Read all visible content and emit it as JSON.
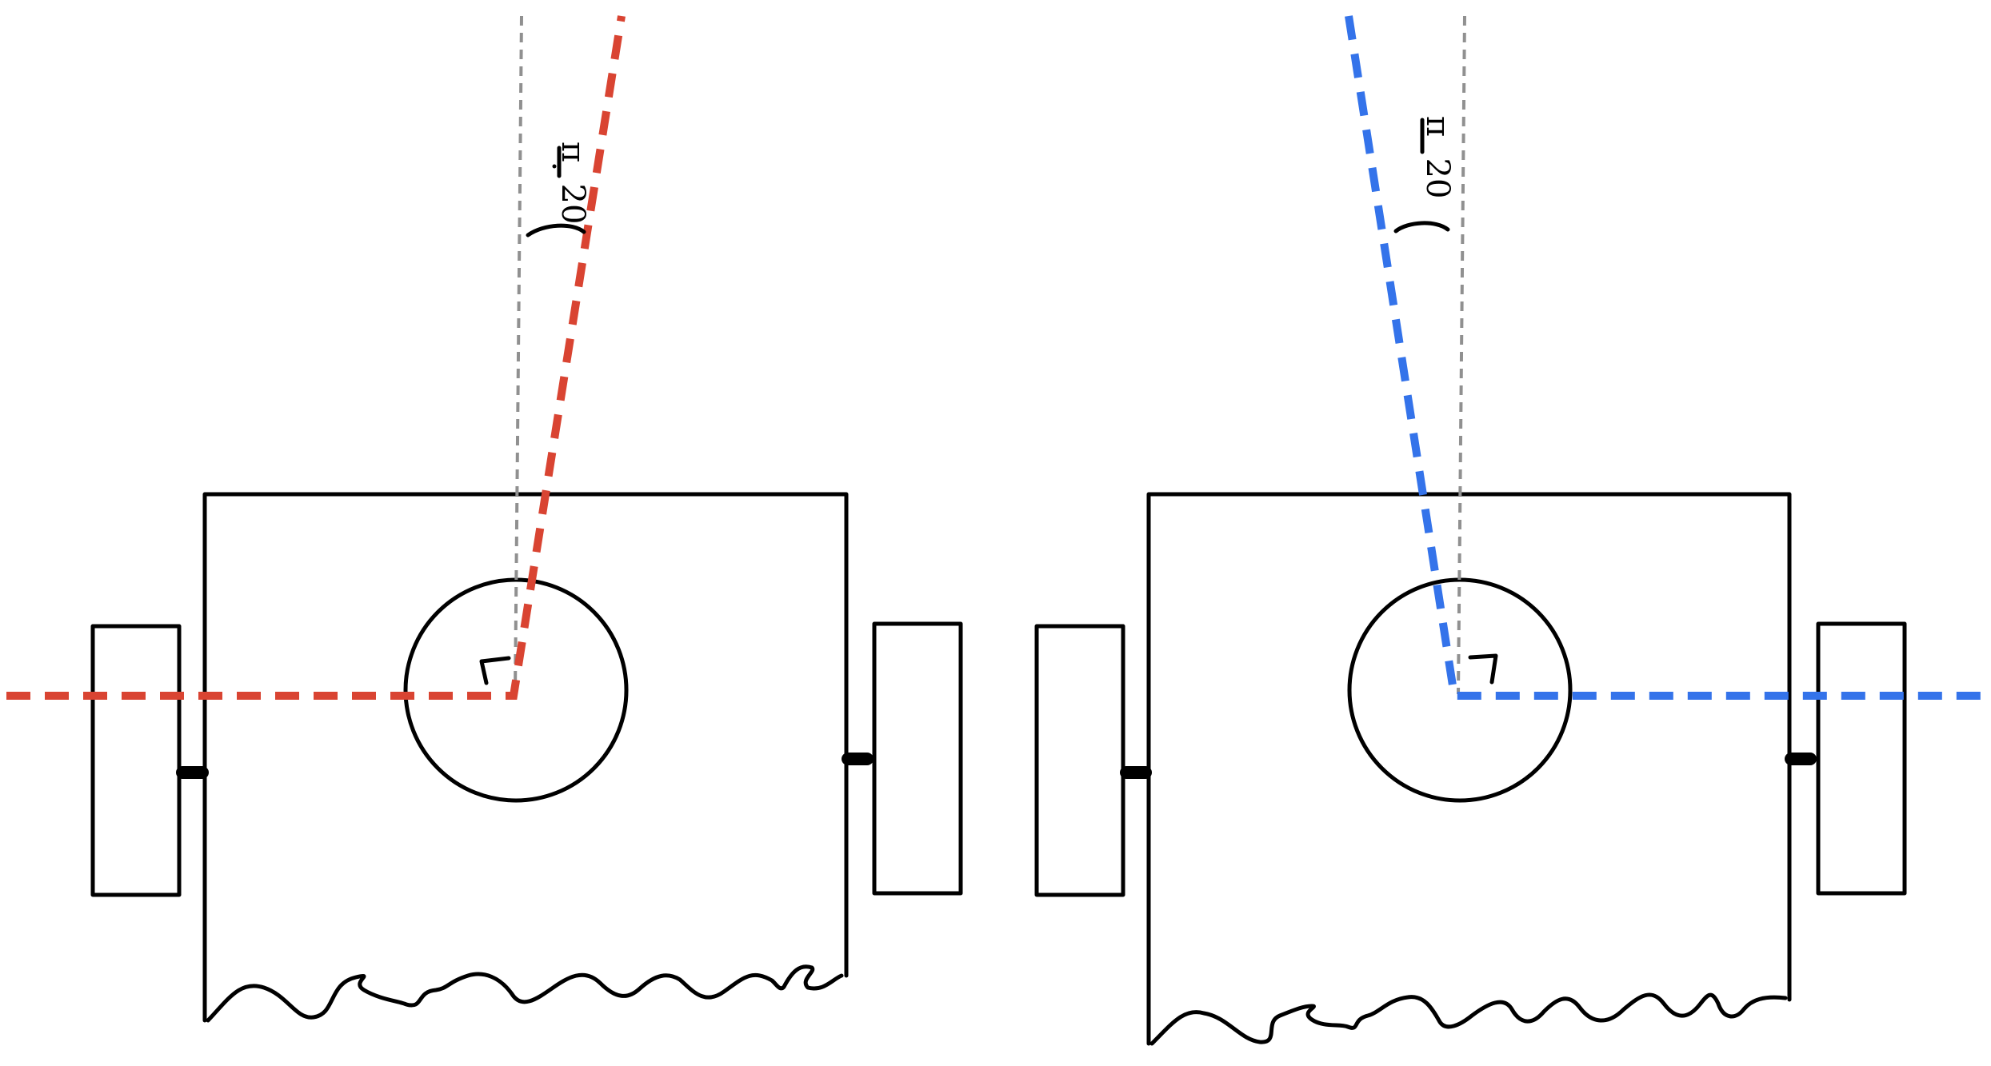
{
  "colors": {
    "left_ray": "#d94432",
    "right_ray": "#3473ea",
    "reference_line": "#909090",
    "ink": "#000000"
  },
  "left_robot": {
    "angle_label": "π/20",
    "angle_numerator": "π",
    "angle_denominator": "20",
    "ray_color_name": "red"
  },
  "right_robot": {
    "angle_label": "π/20",
    "angle_numerator": "π",
    "angle_denominator": "20",
    "ray_color_name": "blue"
  }
}
